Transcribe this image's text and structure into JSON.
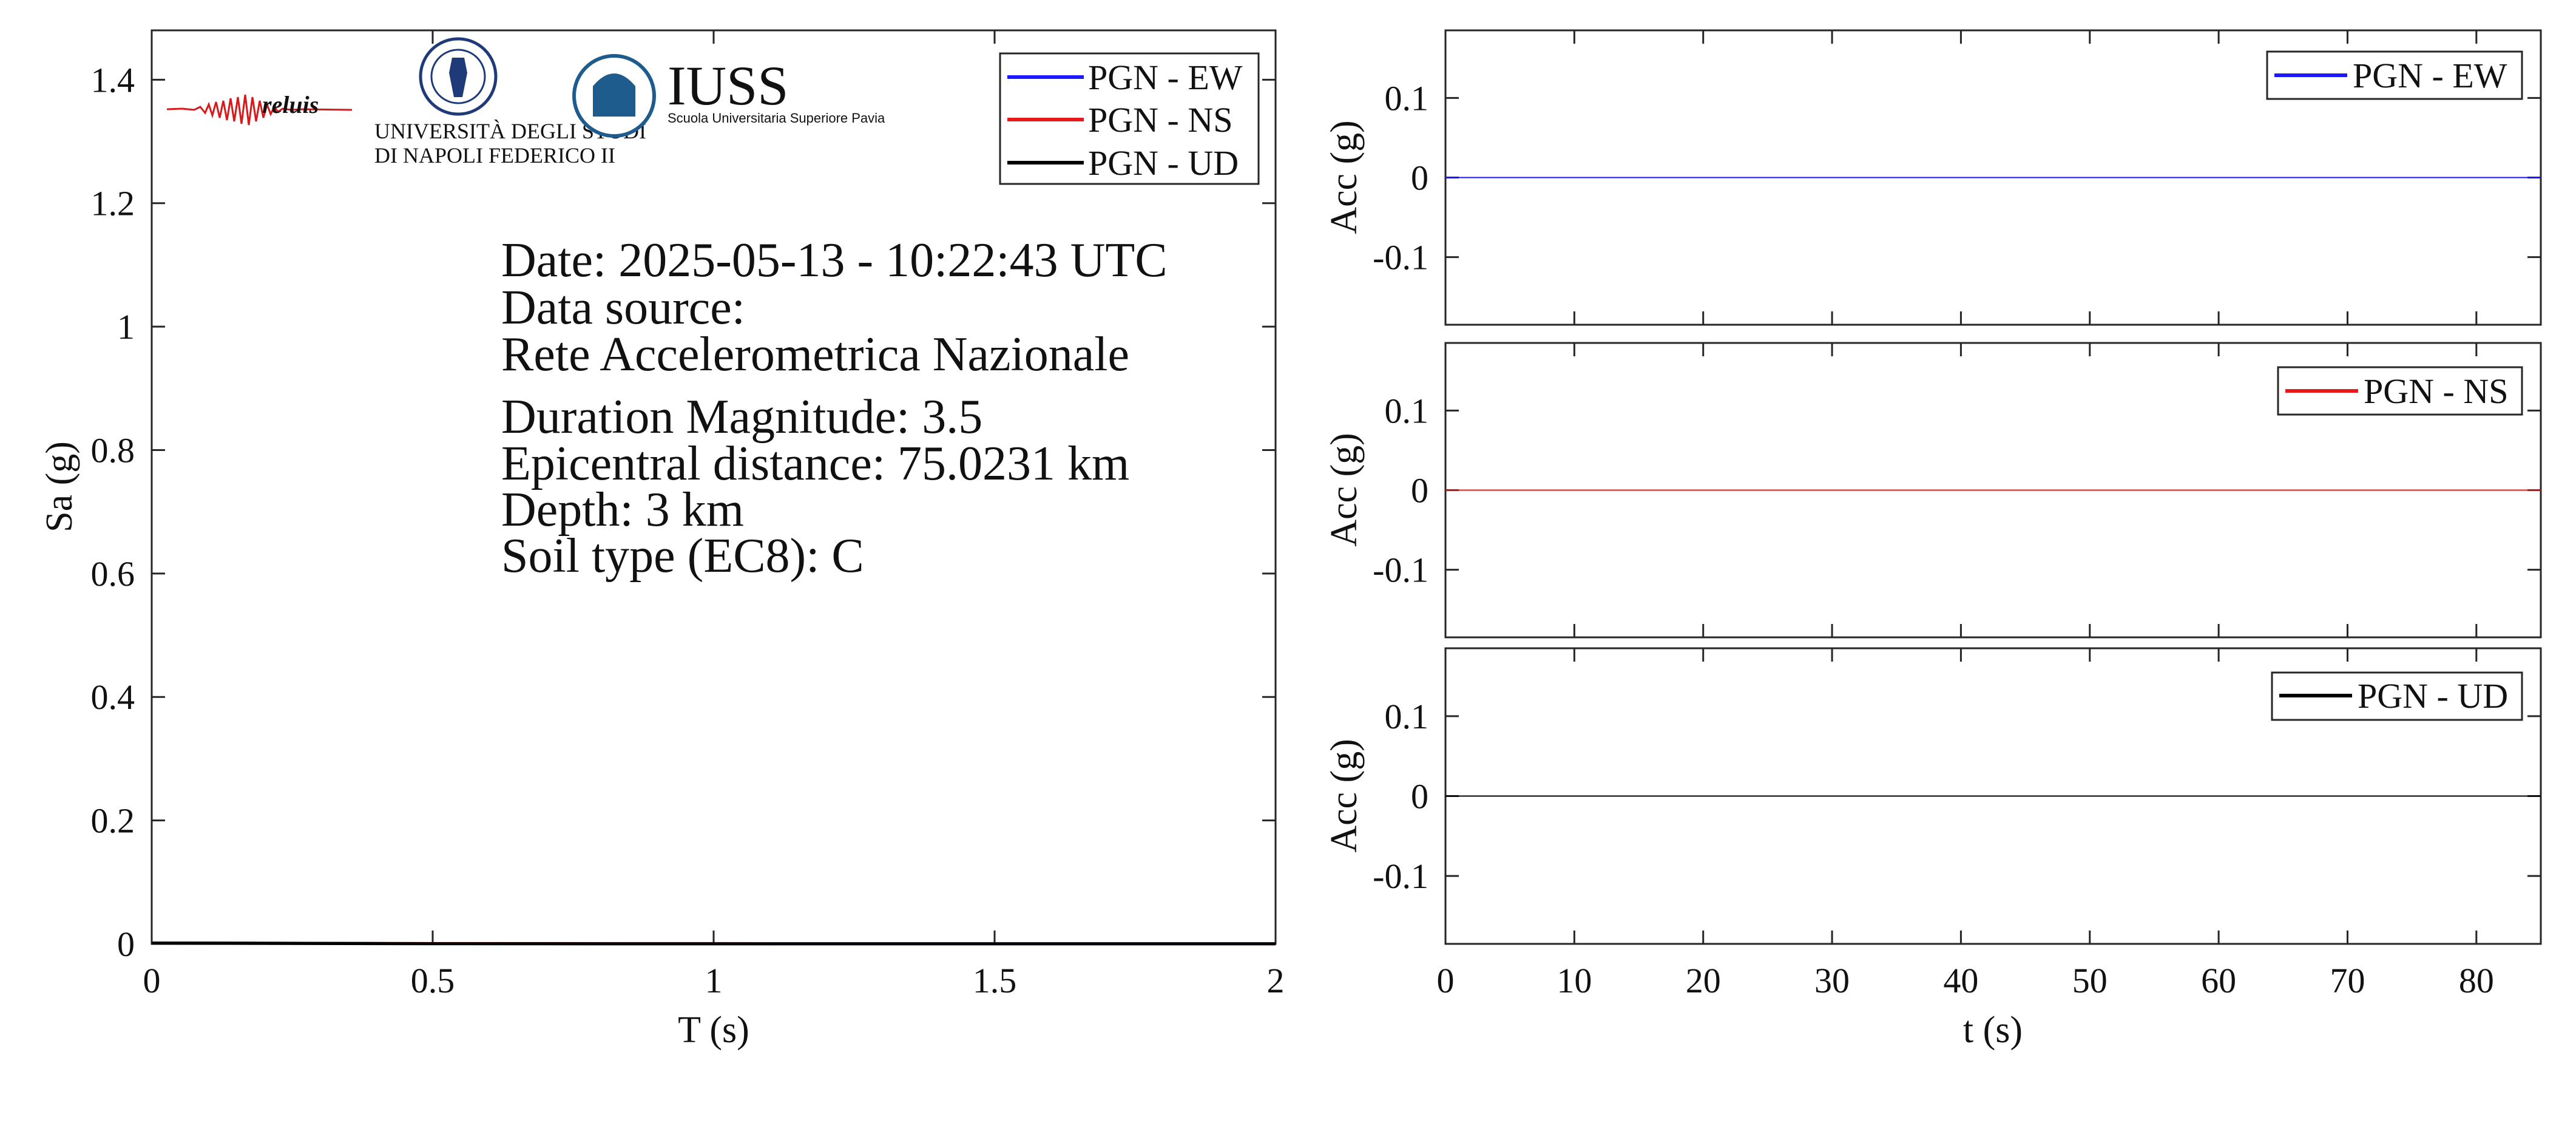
{
  "chart_data": [
    {
      "type": "line",
      "xlabel": "T (s)",
      "ylabel": "Sa (g)",
      "xlim": [
        0,
        2
      ],
      "ylim": [
        0,
        1.48
      ],
      "xticks": [
        0,
        0.5,
        1,
        1.5,
        2
      ],
      "xtick_labels": [
        "0",
        "0.5",
        "1",
        "1.5",
        "2"
      ],
      "yticks": [
        0,
        0.2,
        0.4,
        0.6,
        0.8,
        1,
        1.2,
        1.4
      ],
      "ytick_labels": [
        "0",
        "0.2",
        "0.4",
        "0.6",
        "0.8",
        "1",
        "1.2",
        "1.4"
      ],
      "legend": "top-right",
      "grid": false,
      "series": [
        {
          "name": "PGN - EW",
          "color": "#1a1aff",
          "x": [
            0,
            0.5,
            1,
            1.5,
            2
          ],
          "y": [
            0.0015,
            0.0005,
            0.0002,
            0.0001,
            0.0001
          ]
        },
        {
          "name": "PGN - NS",
          "color": "#e8191a",
          "x": [
            0,
            0.5,
            1,
            1.5,
            2
          ],
          "y": [
            0.0015,
            0.0005,
            0.0002,
            0.0001,
            0.0001
          ]
        },
        {
          "name": "PGN - UD",
          "color": "#000000",
          "x": [
            0,
            0.5,
            1,
            1.5,
            2
          ],
          "y": [
            0.001,
            0.0003,
            0.0001,
            0.0001,
            0.0001
          ]
        }
      ],
      "annotation_lines": [
        "Date: 2025-05-13 - 10:22:43 UTC",
        "Data source:",
        "Rete Accelerometrica Nazionale",
        "Duration Magnitude: 3.5",
        "Epicentral distance: 75.0231 km",
        "Depth: 3 km",
        "Soil type (EC8): C"
      ],
      "logos": {
        "reluis": "reluis",
        "unina_line1": "UNIVERSITÀ DEGLI STUDI",
        "unina_line2": "DI NAPOLI FEDERICO II",
        "iuss_title": "IUSS",
        "iuss_subtitle": "Scuola Universitaria Superiore Pavia"
      }
    },
    {
      "type": "line",
      "xlabel": "",
      "ylabel": "Acc (g)",
      "xlim": [
        0,
        85
      ],
      "ylim": [
        -0.185,
        0.185
      ],
      "xticks": [
        0,
        10,
        20,
        30,
        40,
        50,
        60,
        70,
        80
      ],
      "yticks": [
        -0.1,
        0,
        0.1
      ],
      "ytick_labels": [
        "-0.1",
        "0",
        "0.1"
      ],
      "legend": "top-right",
      "series": [
        {
          "name": "PGN - EW",
          "color": "#1a1aff",
          "x": [
            0,
            85
          ],
          "y": [
            0,
            0
          ]
        }
      ]
    },
    {
      "type": "line",
      "xlabel": "",
      "ylabel": "Acc (g)",
      "xlim": [
        0,
        85
      ],
      "ylim": [
        -0.185,
        0.185
      ],
      "xticks": [
        0,
        10,
        20,
        30,
        40,
        50,
        60,
        70,
        80
      ],
      "yticks": [
        -0.1,
        0,
        0.1
      ],
      "ytick_labels": [
        "-0.1",
        "0",
        "0.1"
      ],
      "legend": "top-right",
      "series": [
        {
          "name": "PGN - NS",
          "color": "#e8191a",
          "x": [
            0,
            85
          ],
          "y": [
            0,
            0
          ]
        }
      ]
    },
    {
      "type": "line",
      "xlabel": "t (s)",
      "ylabel": "Acc (g)",
      "xlim": [
        0,
        85
      ],
      "ylim": [
        -0.185,
        0.185
      ],
      "xticks": [
        0,
        10,
        20,
        30,
        40,
        50,
        60,
        70,
        80
      ],
      "xtick_labels": [
        "0",
        "10",
        "20",
        "30",
        "40",
        "50",
        "60",
        "70",
        "80"
      ],
      "yticks": [
        -0.1,
        0,
        0.1
      ],
      "ytick_labels": [
        "-0.1",
        "0",
        "0.1"
      ],
      "legend": "top-right",
      "series": [
        {
          "name": "PGN - UD",
          "color": "#000000",
          "x": [
            0,
            85
          ],
          "y": [
            0,
            0
          ]
        }
      ]
    }
  ]
}
